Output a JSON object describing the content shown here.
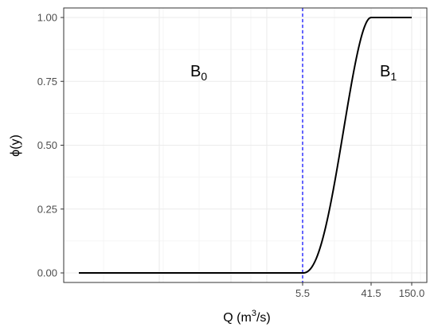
{
  "chart_data": {
    "type": "line",
    "xlabel": {
      "base": "Q (m",
      "sup": "3",
      "tail": "/s)"
    },
    "ylabel": "ϕ(y)",
    "ylim": [
      0,
      1
    ],
    "x_tick_labels": [
      "5.5",
      "41.5",
      "150.0"
    ],
    "y_tick_labels": [
      "0.00",
      "0.25",
      "0.50",
      "0.75",
      "1.00"
    ],
    "y_ticks": [
      0,
      0.25,
      0.5,
      0.75,
      1.0
    ],
    "x_scale": "nonlinear",
    "grid": true,
    "threshold_line": {
      "x_label": "5.5",
      "color": "#0000ff",
      "style": "dashed"
    },
    "annotations": [
      {
        "base": "B",
        "sub": "0"
      },
      {
        "base": "B",
        "sub": "1"
      }
    ],
    "series": [
      {
        "color": "#000000",
        "points": [
          {
            "x": "min",
            "y": 0.0
          },
          {
            "x": 5.5,
            "y": 0.0
          },
          {
            "x": 41.5,
            "y": 1.0
          },
          {
            "x": 150.0,
            "y": 1.0
          }
        ]
      }
    ]
  }
}
